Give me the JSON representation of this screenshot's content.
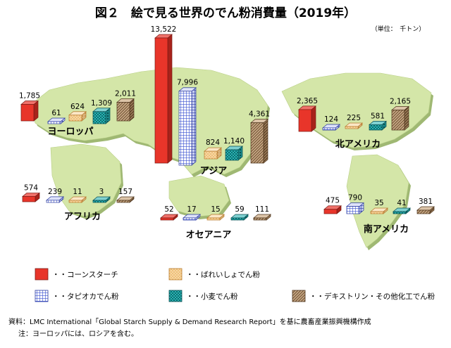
{
  "chart_data": {
    "type": "bar",
    "title": "図２　絵で見る世界のでん粉消費量（2019年）",
    "unit": "（単位：　千トン）",
    "series": [
      {
        "name": "コーンスターチ",
        "color": "#e8352a",
        "pattern": "solid"
      },
      {
        "name": "タピオカでん粉",
        "color": "#4a5fd6",
        "pattern": "grid"
      },
      {
        "name": "ばれいしょでん粉",
        "color": "#f3c98a",
        "pattern": "dots"
      },
      {
        "name": "小麦でん粉",
        "color": "#23a6a6",
        "pattern": "check"
      },
      {
        "name": "デキストリン・その他化工でん粉",
        "color": "#a9896a",
        "pattern": "hatch"
      }
    ],
    "regions": [
      {
        "name": "ヨーロッパ",
        "values": [
          1785,
          61,
          624,
          1309,
          2011
        ],
        "labels": [
          "1,785",
          "61",
          "624",
          "1,309",
          "2,011"
        ]
      },
      {
        "name": "アジア",
        "values": [
          13522,
          7996,
          824,
          1140,
          4361
        ],
        "labels": [
          "13,522",
          "7,996",
          "824",
          "1,140",
          "4,361"
        ]
      },
      {
        "name": "北アメリカ",
        "values": [
          2365,
          124,
          225,
          581,
          2165
        ],
        "labels": [
          "2,365",
          "124",
          "225",
          "581",
          "2,165"
        ]
      },
      {
        "name": "アフリカ",
        "values": [
          574,
          239,
          11,
          3,
          157
        ],
        "labels": [
          "574",
          "239",
          "11",
          "3",
          "157"
        ]
      },
      {
        "name": "オセアニア",
        "values": [
          52,
          17,
          15,
          59,
          111
        ],
        "labels": [
          "52",
          "17",
          "15",
          "59",
          "111"
        ]
      },
      {
        "name": "南アメリカ",
        "values": [
          475,
          790,
          35,
          41,
          381
        ],
        "labels": [
          "475",
          "790",
          "35",
          "41",
          "381"
        ]
      }
    ],
    "legend": [
      "・・コーンスターチ",
      "・・ばれいしょでん粉",
      "・・タピオカでん粉",
      "・・小麦でん粉",
      "・・デキストリン・その他化工でん粉"
    ]
  },
  "notes": {
    "source": "資料：LMC International「Global Starch Supply & Demand Research Report」を基に農畜産業振興機構作成",
    "note": "注：ヨーロッパには、ロシアを含む。"
  },
  "colors": {
    "land": "#d4e6a8",
    "land_shadow": "#9fb873"
  }
}
